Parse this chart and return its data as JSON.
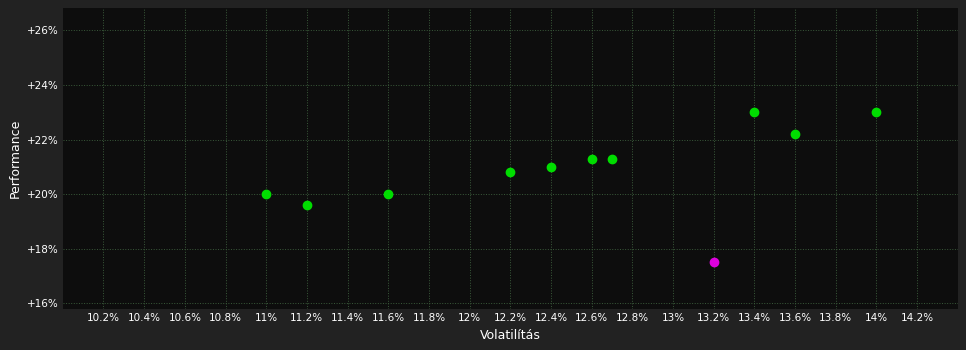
{
  "background_color": "#222222",
  "plot_bg_color": "#0d0d0d",
  "text_color": "#ffffff",
  "xlabel": "Volatilítás",
  "ylabel": "Performance",
  "xlim": [
    0.1,
    0.144
  ],
  "ylim": [
    0.158,
    0.268
  ],
  "xtick_values": [
    0.102,
    0.104,
    0.106,
    0.108,
    0.11,
    0.112,
    0.114,
    0.116,
    0.118,
    0.12,
    0.122,
    0.124,
    0.126,
    0.128,
    0.13,
    0.132,
    0.134,
    0.136,
    0.138,
    0.14,
    0.142
  ],
  "xtick_labels": [
    "10.2%",
    "10.4%",
    "10.6%",
    "10.8%",
    "11%",
    "11.2%",
    "11.4%",
    "11.6%",
    "11.8%",
    "12%",
    "12.2%",
    "12.4%",
    "12.6%",
    "12.8%",
    "13%",
    "13.2%",
    "13.4%",
    "13.6%",
    "13.8%",
    "14%",
    "14.2%"
  ],
  "ytick_values": [
    0.16,
    0.18,
    0.2,
    0.22,
    0.24,
    0.26
  ],
  "ytick_labels": [
    "+16%",
    "+18%",
    "+20%",
    "+22%",
    "+24%",
    "+26%"
  ],
  "green_points": [
    [
      0.11,
      0.2
    ],
    [
      0.112,
      0.196
    ],
    [
      0.116,
      0.2
    ],
    [
      0.122,
      0.208
    ],
    [
      0.124,
      0.21
    ],
    [
      0.126,
      0.213
    ],
    [
      0.127,
      0.213
    ],
    [
      0.134,
      0.23
    ],
    [
      0.136,
      0.222
    ],
    [
      0.14,
      0.23
    ]
  ],
  "magenta_points": [
    [
      0.132,
      0.175
    ]
  ],
  "green_color": "#00dd00",
  "magenta_color": "#dd00dd",
  "marker_size": 6,
  "grid_color": "#3a5a3a",
  "grid_linestyle": ":",
  "grid_linewidth": 0.7
}
